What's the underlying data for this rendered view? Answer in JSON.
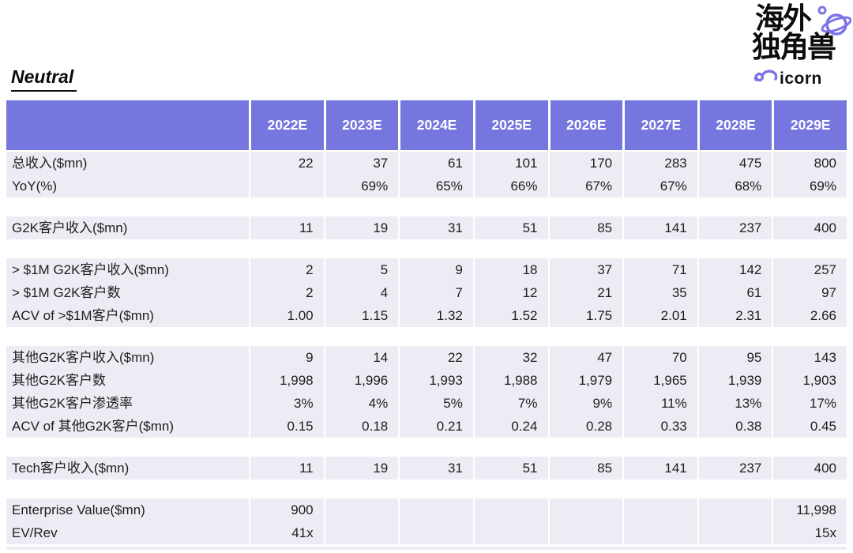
{
  "page": {
    "title": "Neutral"
  },
  "logo": {
    "cn_line1": "海外",
    "cn_line2": "独角兽",
    "wordmark": "icorn",
    "accent": "#7B74E8"
  },
  "chart_data": {
    "type": "table",
    "title": "Neutral",
    "columns": [
      "2022E",
      "2023E",
      "2024E",
      "2025E",
      "2026E",
      "2027E",
      "2028E",
      "2029E"
    ],
    "sections": [
      {
        "rows": [
          {
            "label": "总收入($mn)",
            "values": [
              "22",
              "37",
              "61",
              "101",
              "170",
              "283",
              "475",
              "800"
            ]
          },
          {
            "label": "YoY(%)",
            "values": [
              "",
              "69%",
              "65%",
              "66%",
              "67%",
              "67%",
              "68%",
              "69%"
            ]
          }
        ]
      },
      {
        "rows": [
          {
            "label": "G2K客户收入($mn)",
            "values": [
              "11",
              "19",
              "31",
              "51",
              "85",
              "141",
              "237",
              "400"
            ]
          }
        ]
      },
      {
        "rows": [
          {
            "label": "> $1M G2K客户收入($mn)",
            "values": [
              "2",
              "5",
              "9",
              "18",
              "37",
              "71",
              "142",
              "257"
            ]
          },
          {
            "label": "> $1M G2K客户数",
            "values": [
              "2",
              "4",
              "7",
              "12",
              "21",
              "35",
              "61",
              "97"
            ]
          },
          {
            "label": "ACV of >$1M客户($mn)",
            "values": [
              "1.00",
              "1.15",
              "1.32",
              "1.52",
              "1.75",
              "2.01",
              "2.31",
              "2.66"
            ]
          }
        ]
      },
      {
        "rows": [
          {
            "label": "其他G2K客户收入($mn)",
            "values": [
              "9",
              "14",
              "22",
              "32",
              "47",
              "70",
              "95",
              "143"
            ]
          },
          {
            "label": "其他G2K客户数",
            "values": [
              "1,998",
              "1,996",
              "1,993",
              "1,988",
              "1,979",
              "1,965",
              "1,939",
              "1,903"
            ]
          },
          {
            "label": "其他G2K客户渗透率",
            "values": [
              "3%",
              "4%",
              "5%",
              "7%",
              "9%",
              "11%",
              "13%",
              "17%"
            ]
          },
          {
            "label": "ACV of 其他G2K客户($mn)",
            "values": [
              "0.15",
              "0.18",
              "0.21",
              "0.24",
              "0.28",
              "0.33",
              "0.38",
              "0.45"
            ]
          }
        ]
      },
      {
        "rows": [
          {
            "label": "Tech客户收入($mn)",
            "values": [
              "11",
              "19",
              "31",
              "51",
              "85",
              "141",
              "237",
              "400"
            ]
          }
        ]
      },
      {
        "rows": [
          {
            "label": "Enterprise Value($mn)",
            "values": [
              "900",
              "",
              "",
              "",
              "",
              "",
              "",
              "11,998"
            ]
          },
          {
            "label": "EV/Rev",
            "values": [
              "41x",
              "",
              "",
              "",
              "",
              "",
              "",
              "15x"
            ]
          }
        ]
      }
    ],
    "colors": {
      "header_bg": "#7577DE",
      "row_bg": "#EDECF4",
      "header_text": "#FFFFFF",
      "text": "#1E1E1E"
    },
    "layout": {
      "legend": "none",
      "grid": "column-separators-white"
    }
  }
}
